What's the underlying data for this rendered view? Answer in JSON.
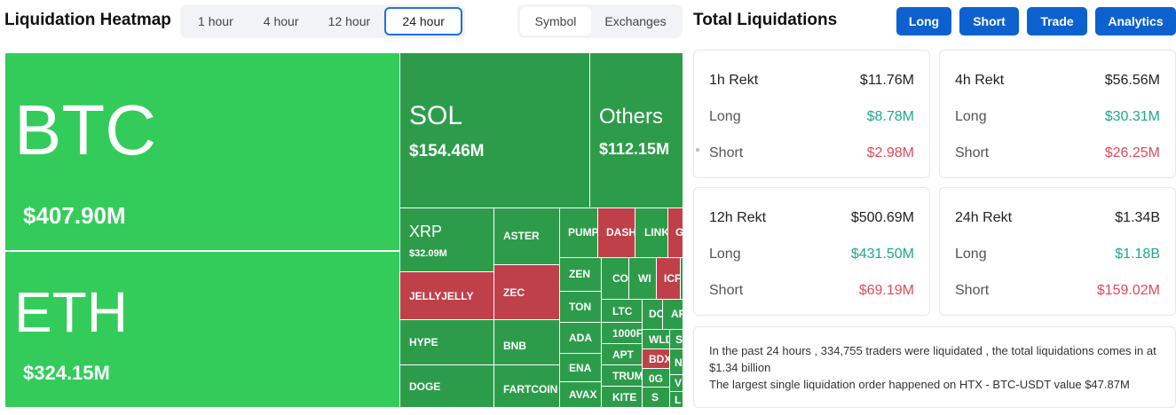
{
  "heatmap": {
    "title": "Liquidation Heatmap",
    "time_tabs": [
      {
        "label": "1 hour"
      },
      {
        "label": "4 hour"
      },
      {
        "label": "12 hour"
      },
      {
        "label": "24 hour",
        "active": true
      }
    ],
    "view_tabs": [
      {
        "label": "Symbol",
        "active": true
      },
      {
        "label": "Exchanges"
      }
    ],
    "colors": {
      "bright_green": "#33cc5b",
      "green": "#2d9c4a",
      "red": "#c0404a"
    },
    "tiles": [
      {
        "symbol": "BTC",
        "value": "$407.90M"
      },
      {
        "symbol": "ETH",
        "value": "$324.15M"
      },
      {
        "symbol": "SOL",
        "value": "$154.46M"
      },
      {
        "symbol": "Others",
        "value": "$112.15M"
      },
      {
        "symbol": "XRP",
        "value": "$32.09M"
      },
      {
        "symbol": "ASTER"
      },
      {
        "symbol": "PUMP"
      },
      {
        "symbol": "DASH"
      },
      {
        "symbol": "LINK"
      },
      {
        "symbol": "G"
      },
      {
        "symbol": "JELLYJELLY"
      },
      {
        "symbol": "ZEC"
      },
      {
        "symbol": "ZEN"
      },
      {
        "symbol": "CO"
      },
      {
        "symbol": "WI"
      },
      {
        "symbol": "ICF"
      },
      {
        "symbol": "HYPE"
      },
      {
        "symbol": "BNB"
      },
      {
        "symbol": "TON"
      },
      {
        "symbol": "LTC"
      },
      {
        "symbol": "DO"
      },
      {
        "symbol": "AR"
      },
      {
        "symbol": "ADA"
      },
      {
        "symbol": "1000F"
      },
      {
        "symbol": "WLD"
      },
      {
        "symbol": "S"
      },
      {
        "symbol": "DOGE"
      },
      {
        "symbol": "FARTCOIN"
      },
      {
        "symbol": "ENA"
      },
      {
        "symbol": "APT"
      },
      {
        "symbol": "BDX"
      },
      {
        "symbol": "N"
      },
      {
        "symbol": "AVAX"
      },
      {
        "symbol": "TRUM"
      },
      {
        "symbol": "0G"
      },
      {
        "symbol": "V"
      },
      {
        "symbol": "KITE"
      },
      {
        "symbol": "S"
      },
      {
        "symbol": "L"
      }
    ]
  },
  "total": {
    "title": "Total Liquidations",
    "buttons": [
      "Long",
      "Short",
      "Trade",
      "Analytics"
    ],
    "cards": [
      {
        "period": "1h Rekt",
        "total": "$11.76M",
        "long_label": "Long",
        "long": "$8.78M",
        "short_label": "Short",
        "short": "$2.98M"
      },
      {
        "period": "4h Rekt",
        "total": "$56.56M",
        "long_label": "Long",
        "long": "$30.31M",
        "short_label": "Short",
        "short": "$26.25M"
      },
      {
        "period": "12h Rekt",
        "total": "$500.69M",
        "long_label": "Long",
        "long": "$431.50M",
        "short_label": "Short",
        "short": "$69.19M"
      },
      {
        "period": "24h Rekt",
        "total": "$1.34B",
        "long_label": "Long",
        "long": "$1.18B",
        "short_label": "Short",
        "short": "$159.02M"
      }
    ],
    "summary": {
      "line1": "In the past 24 hours , 334,755 traders were liquidated , the total liquidations comes in at $1.34 billion",
      "line2": "The largest single liquidation order happened on HTX - BTC-USDT value $47.87M"
    },
    "colors": {
      "button_blue": "#0d61cf",
      "long_green": "#1fa88f",
      "short_red": "#e04a5b"
    }
  }
}
